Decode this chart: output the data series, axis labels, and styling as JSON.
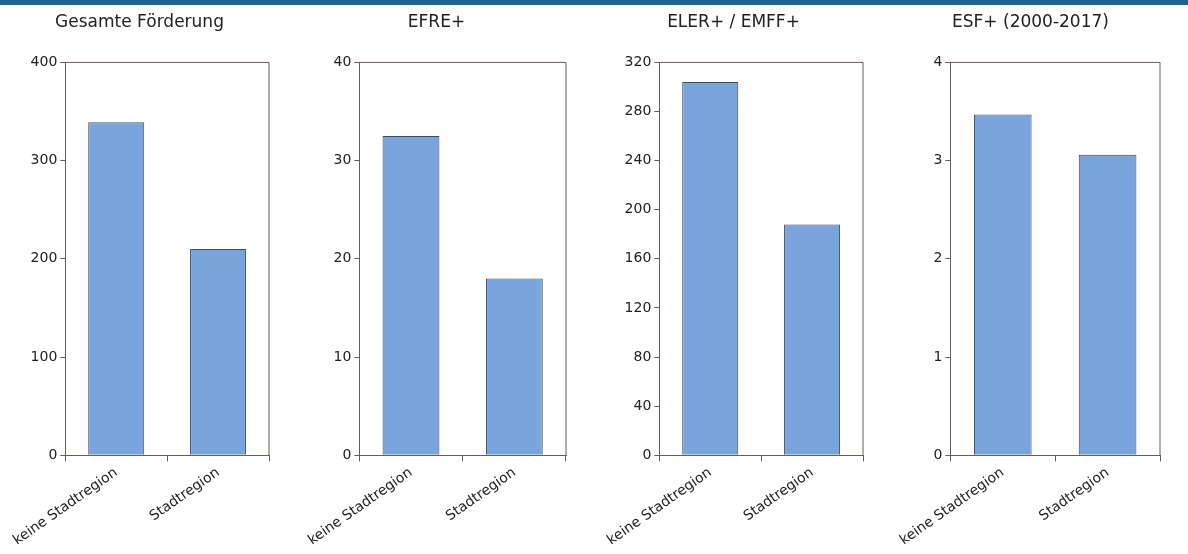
{
  "chart_data": [
    {
      "type": "bar",
      "title": "Gesamte Förderung",
      "categories": [
        "keine Stadtregion",
        "Stadtregion"
      ],
      "values": [
        339,
        210
      ],
      "color": "#7aa5dc",
      "ylim": [
        0,
        400
      ],
      "yticks": [
        0,
        100,
        200,
        300,
        400
      ],
      "grid": false,
      "legend": false
    },
    {
      "type": "bar",
      "title": "EFRE+",
      "categories": [
        "keine Stadtregion",
        "Stadtregion"
      ],
      "values": [
        32.5,
        18
      ],
      "color": "#7aa5dc",
      "ylim": [
        0,
        40
      ],
      "yticks": [
        0,
        10,
        20,
        30,
        40
      ],
      "grid": false,
      "legend": false
    },
    {
      "type": "bar",
      "title": "ELER+ / EMFF+",
      "categories": [
        "keine Stadtregion",
        "Stadtregion"
      ],
      "values": [
        304,
        188
      ],
      "color": "#7aa5dc",
      "ylim": [
        0,
        320
      ],
      "yticks": [
        0,
        40,
        80,
        120,
        160,
        200,
        240,
        280,
        320
      ],
      "grid": false,
      "legend": false
    },
    {
      "type": "bar",
      "title": "ESF+ (2000-2017)",
      "categories": [
        "keine Stadtregion",
        "Stadtregion"
      ],
      "values": [
        3.47,
        3.06
      ],
      "color": "#7aa5dc",
      "ylim": [
        0,
        4
      ],
      "yticks": [
        0,
        1,
        2,
        3,
        4
      ],
      "grid": false,
      "legend": false
    }
  ]
}
